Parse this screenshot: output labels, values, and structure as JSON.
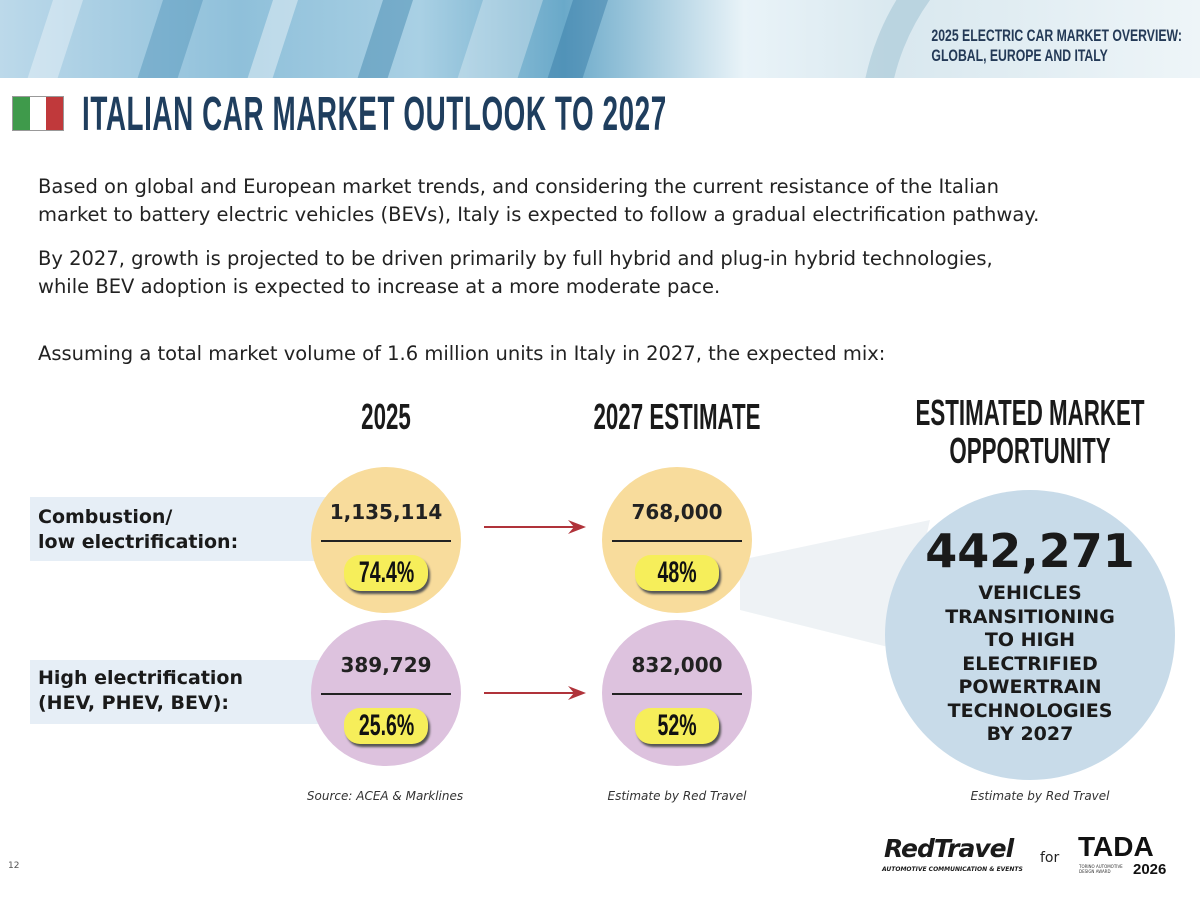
{
  "header": {
    "overview_line1": "2025 ELECTRIC CAR MARKET OVERVIEW:",
    "overview_line2": "GLOBAL, EUROPE AND ITALY"
  },
  "title": "ITALIAN CAR MARKET OUTLOOK TO 2027",
  "flag_colors": [
    "#3f9a4b",
    "#ffffff",
    "#c0393b"
  ],
  "intro": {
    "p1_line1": "Based on global and European market trends, and considering the current resistance of the Italian",
    "p1_line2": "market to battery electric vehicles (BEVs), Italy is expected to follow a gradual electrification pathway.",
    "p2_line1": "By 2027, growth is projected to be driven primarily by full hybrid and plug-in hybrid technologies,",
    "p2_line2": "while BEV adoption is expected to increase at a more moderate pace.",
    "p3": "Assuming a total market volume of 1.6 million units in Italy in 2027, the expected mix:"
  },
  "columns": {
    "col2025": "2025",
    "col2027": "2027 ESTIMATE",
    "opportunity_line1": "ESTIMATED MARKET",
    "opportunity_line2": "OPPORTUNITY"
  },
  "rows": [
    {
      "label_line1": "Combustion/",
      "label_line2": "low electrification:",
      "v2025": "1,135,114",
      "p2025": "74.4%",
      "v2027": "768,000",
      "p2027": "48%",
      "color": "#f8dc9c"
    },
    {
      "label_line1": "High electrification",
      "label_line2": "(HEV, PHEV, BEV):",
      "v2025": "389,729",
      "p2025": "25.6%",
      "v2027": "832,000",
      "p2027": "52%",
      "color": "#ddc2de"
    }
  ],
  "opportunity": {
    "value": "442,271",
    "lines": [
      "VEHICLES",
      "TRANSITIONING",
      "TO HIGH",
      "ELECTRIFIED",
      "POWERTRAIN",
      "TECHNOLOGIES",
      "BY 2027"
    ]
  },
  "sources": {
    "s2025": "Source: ACEA & Marklines",
    "s2027": "Estimate by Red Travel",
    "sopp": "Estimate by Red Travel"
  },
  "footer": {
    "page_number": "12",
    "brand": "RedTravel",
    "brand_sub": "AUTOMOTIVE COMMUNICATION & EVENTS",
    "for": "for",
    "tada": "TADA",
    "tada_sub": "TORINO AUTOMOTIVE DESIGN AWARD",
    "tada_year": "2026"
  },
  "colors": {
    "title": "#1f3e5e",
    "arrow": "#b0333a",
    "opportunity_circle": "#c8dbe9",
    "pill": "#f6ee5a"
  }
}
